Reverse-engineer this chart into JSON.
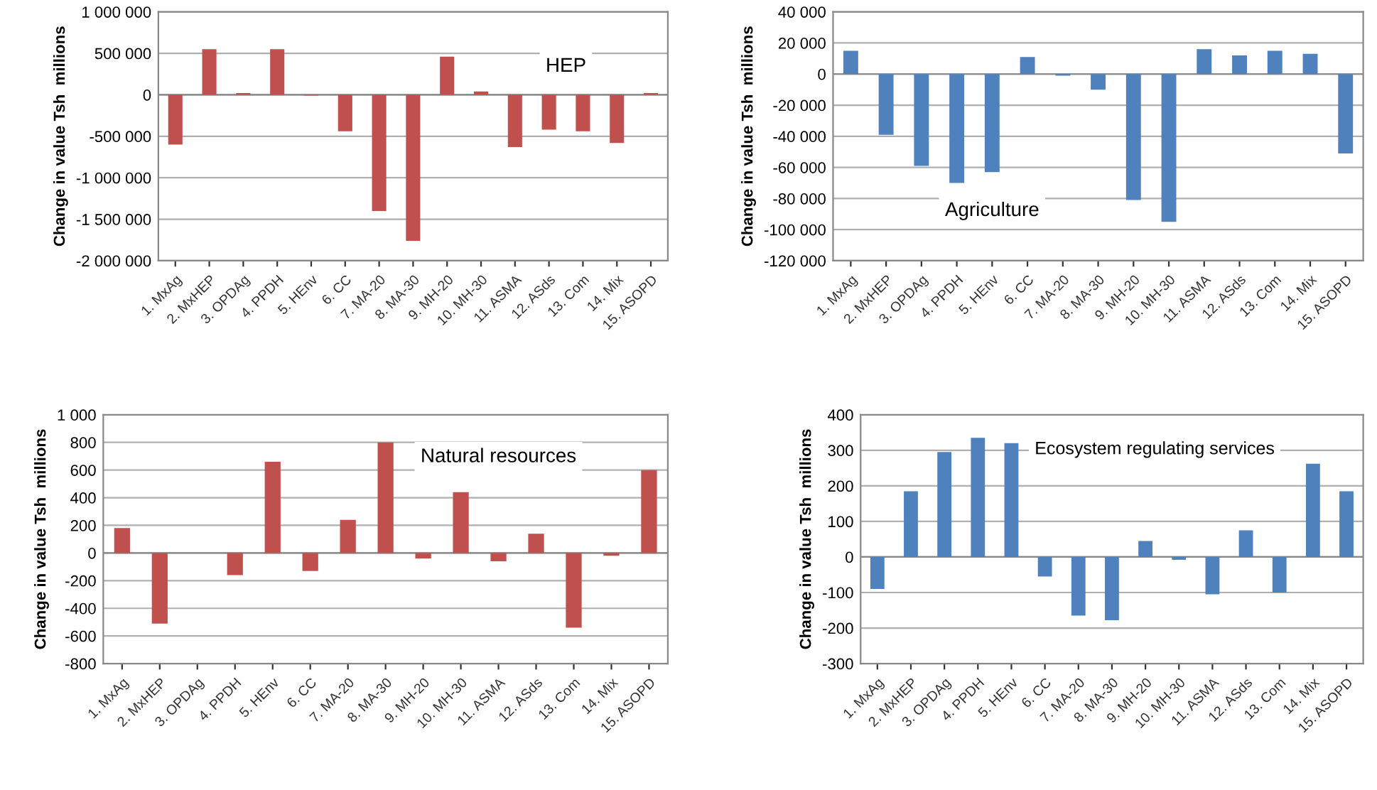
{
  "chart_data": [
    {
      "type": "bar",
      "title": "HEP",
      "ylabel": "Change in value Tsh  millions",
      "categories": [
        "1. MxAg",
        "2. MxHEP",
        "3. OPDAg",
        "4. PPDH",
        "5. HEnv",
        "6. CC",
        "7. MA-20",
        "8. MA-30",
        "9. MH-20",
        "10. MH-30",
        "11. ASMA",
        "12. ASds",
        "13. Com",
        "14. Mix",
        "15. ASOPD"
      ],
      "values": [
        -600000,
        550000,
        20000,
        550000,
        -10000,
        -440000,
        -1400000,
        -1760000,
        460000,
        40000,
        -630000,
        -420000,
        -440000,
        -580000,
        20000
      ],
      "color": "#c0504d",
      "ylim": [
        -2000000,
        1000000
      ],
      "yticks": [
        {
          "value": -2000000,
          "label": "-2 000 000"
        },
        {
          "value": -1500000,
          "label": "-1 500 000"
        },
        {
          "value": -1000000,
          "label": "-1 000 000"
        },
        {
          "value": -500000,
          "label": "-500 000"
        },
        0,
        {
          "value": 500000,
          "label": "500 000"
        },
        {
          "value": 1000000,
          "label": "1 000 000"
        }
      ],
      "grid": "y"
    },
    {
      "type": "bar",
      "title": "Agriculture",
      "ylabel": "Change in value Tsh  millions",
      "categories": [
        "1. MxAg",
        "2. MxHEP",
        "3. OPDAg",
        "4. PPDH",
        "5. HEnv",
        "6. CC",
        "7. MA-20",
        "8. MA-30",
        "9. MH-20",
        "10. MH-30",
        "11. ASMA",
        "12. ASds",
        "13. Com",
        "14. Mix",
        "15. ASOPD"
      ],
      "values": [
        15000,
        -39000,
        -59000,
        -70000,
        -63000,
        11000,
        -1000,
        -10000,
        -81000,
        -95000,
        16000,
        12000,
        15000,
        13000,
        -51000
      ],
      "color": "#4f81bd",
      "ylim": [
        -120000,
        40000
      ],
      "yticks": [
        {
          "value": -120000,
          "label": "-120 000"
        },
        {
          "value": -100000,
          "label": "-100 000"
        },
        {
          "value": -80000,
          "label": "-80 000"
        },
        {
          "value": -60000,
          "label": "-60 000"
        },
        {
          "value": -40000,
          "label": "-40 000"
        },
        {
          "value": -20000,
          "label": "-20 000"
        },
        0,
        {
          "value": 20000,
          "label": "20 000"
        },
        {
          "value": 40000,
          "label": "40 000"
        }
      ],
      "grid": "y"
    },
    {
      "type": "bar",
      "title": "Natural resources",
      "ylabel": "Change in value Tsh  millions",
      "categories": [
        "1. MxAg",
        "2. MxHEP",
        "3. OPDAg",
        "4. PPDH",
        "5. HEnv",
        "6. CC",
        "7. MA-20",
        "8. MA-30",
        "9. MH-20",
        "10. MH-30",
        "11. ASMA",
        "12. ASds",
        "13. Com",
        "14. Mix",
        "15. ASOPD"
      ],
      "values": [
        180,
        -510,
        0,
        -160,
        660,
        -130,
        240,
        800,
        -40,
        440,
        -60,
        140,
        -540,
        -20,
        600
      ],
      "color": "#c0504d",
      "ylim": [
        -800,
        1000
      ],
      "yticks": [
        -800,
        -600,
        -400,
        -200,
        0,
        200,
        400,
        600,
        800,
        {
          "value": 1000,
          "label": "1 000"
        }
      ],
      "grid": "y"
    },
    {
      "type": "bar",
      "title": "Ecosystem regulating services",
      "ylabel": "Change in value Tsh  millions",
      "categories": [
        "1. MxAg",
        "2. MxHEP",
        "3. OPDAg",
        "4. PPDH",
        "5. HEnv",
        "6. CC",
        "7. MA-20",
        "8. MA-30",
        "9. MH-20",
        "10. MH-30",
        "11. ASMA",
        "12. ASds",
        "13. Com",
        "14. Mix",
        "15. ASOPD"
      ],
      "values": [
        -90,
        185,
        295,
        335,
        320,
        -55,
        -165,
        -178,
        45,
        -8,
        -105,
        75,
        -100,
        262,
        185
      ],
      "color": "#4f81bd",
      "ylim": [
        -300,
        400
      ],
      "yticks": [
        -300,
        -200,
        -100,
        0,
        100,
        200,
        300,
        400
      ],
      "grid": "y"
    }
  ]
}
